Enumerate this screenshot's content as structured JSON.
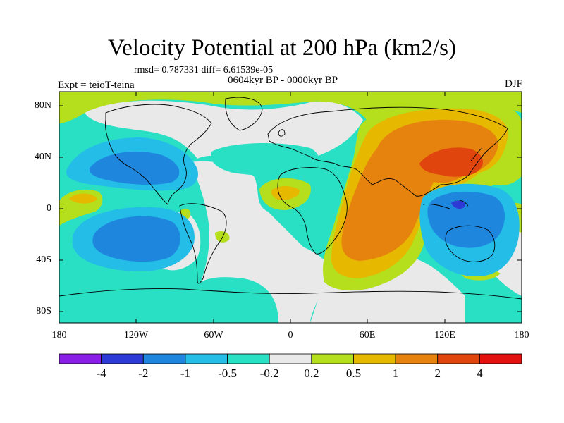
{
  "title": "Velocity Potential at 200 hPa (km2/s)",
  "stats_line": "rmsd= 0.787331 diff= 6.61539e-05",
  "period_line": "0604kyr BP - 0000kyr BP",
  "experiment_line": "Expt = teioT-teina",
  "season": "DJF",
  "y_axis_ticks": [
    "80N",
    "40N",
    "0",
    "40S",
    "80S"
  ],
  "x_axis_ticks": [
    "180",
    "120W",
    "60W",
    "0",
    "60E",
    "120E",
    "180"
  ],
  "colorbar": {
    "labels": [
      "-4",
      "-2",
      "-1",
      "-0.5",
      "-0.2",
      "0.2",
      "0.5",
      "1",
      "2",
      "4"
    ],
    "colors": [
      "#8a1ee6",
      "#2d3ad6",
      "#1f86de",
      "#23bde8",
      "#29dfc4",
      "#e9e9e9",
      "#b5df1c",
      "#e6b800",
      "#e6830f",
      "#e0450e",
      "#e2120e"
    ]
  },
  "map_palette": {
    "land_outline": "#000000",
    "neutral": "#e9e9e9"
  }
}
